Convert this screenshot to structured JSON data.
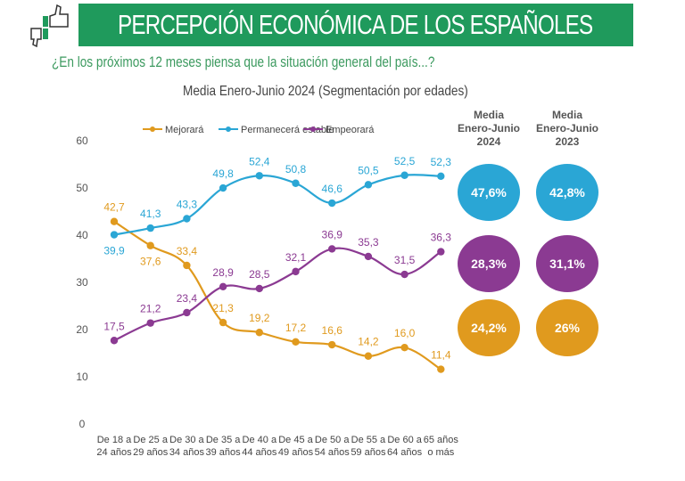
{
  "header": {
    "title": "PERCEPCIÓN ECONÓMICA DE LOS ESPAÑOLES",
    "question": "¿En los próximos 12 meses piensa que la situación general del país...?"
  },
  "colors": {
    "banner": "#1f9a5c",
    "mejorara": "#e09a1e",
    "estable": "#2aa6d5",
    "empeorara": "#8b3a92"
  },
  "chart_data": {
    "type": "line",
    "title": "Media Enero-Junio 2024 (Segmentación por edades)",
    "categories": [
      [
        "De 18 a",
        "24 años"
      ],
      [
        "De 25 a",
        "29 años"
      ],
      [
        "De 30 a",
        "34 años"
      ],
      [
        "De 35 a",
        "39 años"
      ],
      [
        "De 40 a",
        "44 años"
      ],
      [
        "De 45 a",
        "49 años"
      ],
      [
        "De 50 a",
        "54 años"
      ],
      [
        "De 55 a",
        "59 años"
      ],
      [
        "De 60 a",
        "64 años"
      ],
      [
        "65 años",
        "o más"
      ]
    ],
    "ylim": [
      0,
      60
    ],
    "yticks": [
      0,
      10,
      20,
      30,
      40,
      50,
      60
    ],
    "legend": "top",
    "grid": false,
    "series": [
      {
        "name": "Mejorará",
        "values": [
          42.7,
          37.6,
          33.4,
          21.3,
          19.2,
          17.2,
          16.6,
          14.2,
          16.0,
          11.4
        ],
        "labels": [
          "42,7",
          "37,6",
          "33,4",
          "21,3",
          "19,2",
          "17,2",
          "16,6",
          "14,2",
          "16,0",
          "11,4"
        ]
      },
      {
        "name": "Permanecerá estable",
        "values": [
          39.9,
          41.3,
          43.3,
          49.8,
          52.4,
          50.8,
          46.6,
          50.5,
          52.5,
          52.3
        ],
        "labels": [
          "39,9",
          "41,3",
          "43,3",
          "49,8",
          "52,4",
          "50,8",
          "46,6",
          "50,5",
          "52,5",
          "52,3"
        ]
      },
      {
        "name": "Empeorará",
        "values": [
          17.5,
          21.2,
          23.4,
          28.9,
          28.5,
          32.1,
          36.9,
          35.3,
          31.5,
          36.3
        ],
        "labels": [
          "17,5",
          "21,2",
          "23,4",
          "28,9",
          "28,5",
          "32,1",
          "36,9",
          "35,3",
          "31,5",
          "36,3"
        ]
      }
    ]
  },
  "summary": {
    "columns": [
      [
        "Media",
        "Enero-Junio",
        "2024"
      ],
      [
        "Media",
        "Enero-Junio",
        "2023"
      ]
    ],
    "rows": [
      {
        "series": "Permanecerá estable",
        "values": [
          "47,6%",
          "42,8%"
        ]
      },
      {
        "series": "Empeorará",
        "values": [
          "28,3%",
          "31,1%"
        ]
      },
      {
        "series": "Mejorará",
        "values": [
          "24,2%",
          "26%"
        ]
      }
    ]
  }
}
